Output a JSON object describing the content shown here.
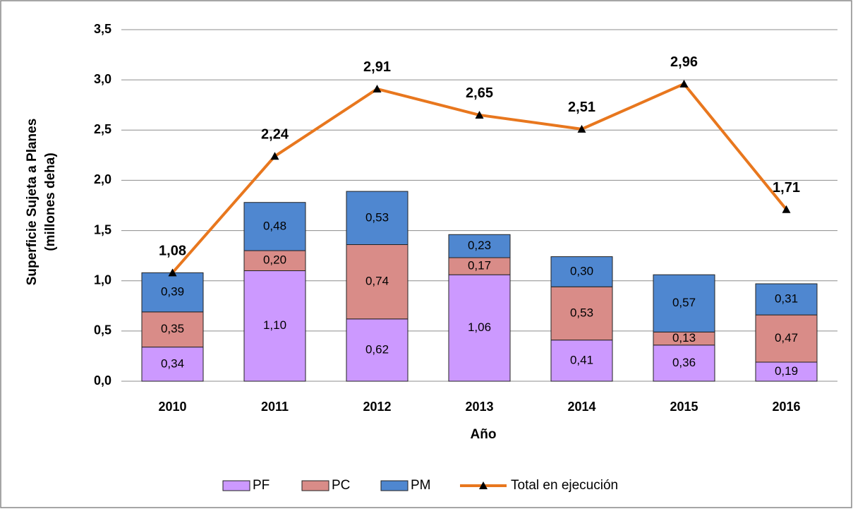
{
  "chart_data": {
    "type": "stacked_bar_line",
    "categories": [
      "2010",
      "2011",
      "2012",
      "2013",
      "2014",
      "2015",
      "2016"
    ],
    "series": [
      {
        "name": "PF",
        "color": "#cc99ff",
        "values": [
          0.34,
          1.1,
          0.62,
          1.06,
          0.41,
          0.36,
          0.19
        ],
        "value_labels": [
          "0,34",
          "1,10",
          "0,62",
          "1,06",
          "0,41",
          "0,36",
          "0,19"
        ]
      },
      {
        "name": "PC",
        "color": "#d98c88",
        "values": [
          0.35,
          0.2,
          0.74,
          0.17,
          0.53,
          0.13,
          0.47
        ],
        "value_labels": [
          "0,35",
          "0,20",
          "0,74",
          "0,17",
          "0,53",
          "0,13",
          "0,47"
        ]
      },
      {
        "name": "PM",
        "color": "#4f87d0",
        "values": [
          0.39,
          0.48,
          0.53,
          0.23,
          0.3,
          0.57,
          0.31
        ],
        "value_labels": [
          "0,39",
          "0,48",
          "0,53",
          "0,23",
          "0,30",
          "0,57",
          "0,31"
        ]
      },
      {
        "name": "Total en ejecución",
        "type": "line",
        "color": "#e8771e",
        "values": [
          1.08,
          2.24,
          2.91,
          2.65,
          2.51,
          2.96,
          1.71
        ],
        "value_labels": [
          "1,08",
          "2,24",
          "2,91",
          "2,65",
          "2,51",
          "2,96",
          "1,71"
        ]
      }
    ],
    "x_label": "Año",
    "y_label": [
      "Superficie Sujeta a Planes",
      "(millones deha)"
    ],
    "ylim": [
      0,
      3.5
    ],
    "yticks": [
      {
        "value": 0,
        "label": "0,0"
      },
      {
        "value": 0.5,
        "label": "0,5"
      },
      {
        "value": 1,
        "label": "1,0"
      },
      {
        "value": 1.5,
        "label": "1,5"
      },
      {
        "value": 2,
        "label": "2,0"
      },
      {
        "value": 2.5,
        "label": "2,5"
      },
      {
        "value": 3,
        "label": "3,0"
      },
      {
        "value": 3.5,
        "label": "3,5"
      }
    ],
    "grid": true,
    "legend": "bottom"
  }
}
